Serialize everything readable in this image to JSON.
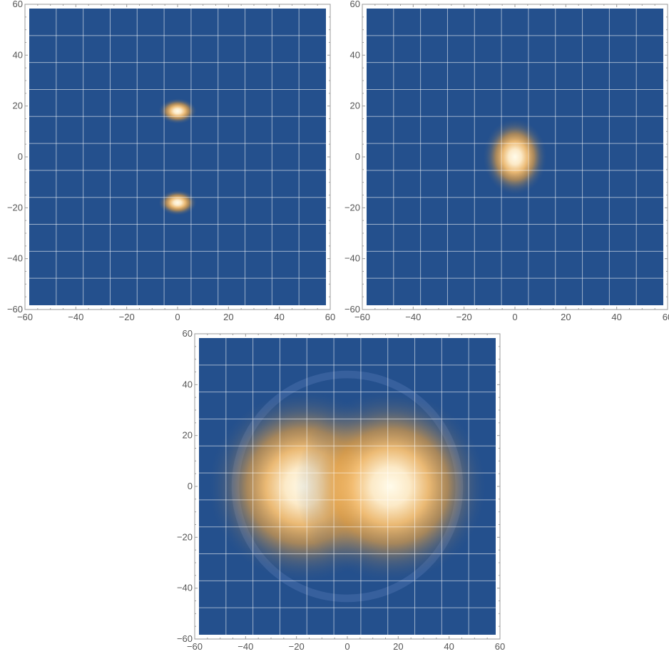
{
  "chart_data": [
    {
      "type": "heatmap",
      "title": "",
      "xlabel": "",
      "ylabel": "",
      "xlim": [
        -60,
        60
      ],
      "ylim": [
        -60,
        60
      ],
      "xticks": [
        -60,
        -40,
        -20,
        0,
        20,
        40,
        60
      ],
      "yticks": [
        -60,
        -40,
        -20,
        0,
        20,
        40,
        60
      ],
      "grid": true,
      "colormap": {
        "low": "#24508d",
        "mid": "#f0a540",
        "high": "#fffbea"
      },
      "blobs": [
        {
          "x": 0,
          "y": 18,
          "sx": 3,
          "sy": 2,
          "intensity": 1.0
        },
        {
          "x": 0,
          "y": -18,
          "sx": 3,
          "sy": 2,
          "intensity": 1.0
        }
      ]
    },
    {
      "type": "heatmap",
      "title": "",
      "xlabel": "",
      "ylabel": "",
      "xlim": [
        -60,
        60
      ],
      "ylim": [
        -60,
        60
      ],
      "xticks": [
        -60,
        -40,
        -20,
        0,
        20,
        40,
        60
      ],
      "yticks": [
        -60,
        -40,
        -20,
        0,
        20,
        40,
        60
      ],
      "grid": true,
      "colormap": {
        "low": "#24508d",
        "mid": "#f0a540",
        "high": "#fffbea"
      },
      "blobs": [
        {
          "x": 0,
          "y": 0,
          "sx": 5,
          "sy": 6,
          "intensity": 1.0
        }
      ]
    },
    {
      "type": "heatmap",
      "title": "",
      "xlabel": "",
      "ylabel": "",
      "xlim": [
        -60,
        60
      ],
      "ylim": [
        -60,
        60
      ],
      "xticks": [
        -60,
        -40,
        -20,
        0,
        20,
        40,
        60
      ],
      "yticks": [
        -60,
        -40,
        -20,
        0,
        20,
        40,
        60
      ],
      "grid": true,
      "colormap": {
        "low": "#24508d",
        "mid": "#f0a540",
        "high": "#fffbea"
      },
      "blobs": [
        {
          "x": -17,
          "y": 0,
          "sx": 15,
          "sy": 15,
          "intensity": 1.0
        },
        {
          "x": 17,
          "y": 0,
          "sx": 15,
          "sy": 15,
          "intensity": 1.0
        }
      ],
      "ring": {
        "x": 0,
        "y": 0,
        "radius": 44,
        "width": 3,
        "intensity": 0.12
      }
    }
  ]
}
